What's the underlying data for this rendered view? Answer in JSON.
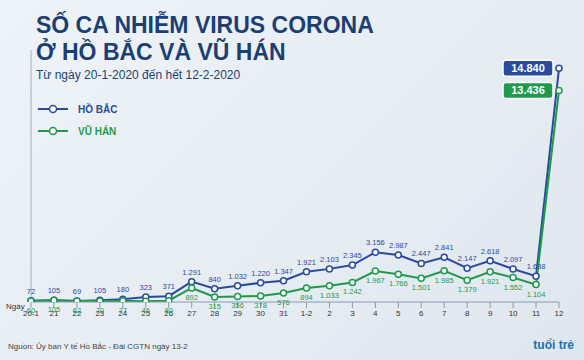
{
  "chart_data": {
    "type": "line",
    "title": "SỐ CA NHIỄM VIRUS CORONA\nỞ HỒ BẮC VÀ VŨ HÁN",
    "subtitle": "Từ ngày 20-1-2020 đến hết 12-2-2020",
    "x_label": "Ngày",
    "source": "Nguồn: Ủy ban Y tế Hồ Bắc - Đài CGTN ngày 13-2",
    "logo": "tuổi trẻ",
    "categories": [
      "20-1",
      "21",
      "22",
      "23",
      "24",
      "25",
      "26",
      "27",
      "28",
      "29",
      "30",
      "31",
      "1-2",
      "2",
      "3",
      "4",
      "5",
      "6",
      "7",
      "8",
      "9",
      "10",
      "11",
      "12"
    ],
    "series": [
      {
        "name": "HỒ BẮC",
        "color": "#2b4a9c",
        "marker": "circle",
        "values": [
          72,
          105,
          69,
          105,
          180,
          323,
          371,
          1291,
          840,
          1032,
          1220,
          1347,
          1921,
          2103,
          2345,
          3156,
          2987,
          2447,
          2841,
          2147,
          2618,
          2097,
          1638,
          14840
        ],
        "value_labels": [
          "72",
          "105",
          "69",
          "105",
          "180",
          "323",
          "371",
          "1.291",
          "840",
          "1.032",
          "1.220",
          "1.347",
          "1.921",
          "2.103",
          "2.345",
          "3.156",
          "2.987",
          "2.447",
          "2.841",
          "2.147",
          "2.618",
          "2.097",
          "1.638",
          "14.840"
        ]
      },
      {
        "name": "VŨ HÁN",
        "color": "#1f9a4c",
        "marker": "circle",
        "values": [
          60,
          105,
          62,
          70,
          77,
          46,
          80,
          892,
          315,
          356,
          378,
          576,
          894,
          1033,
          1242,
          1967,
          1766,
          1501,
          1985,
          1379,
          1921,
          1552,
          1104,
          13436
        ],
        "value_labels": [
          "60",
          "105",
          "62",
          "70",
          "77",
          "46",
          "80",
          "892",
          "315",
          "356",
          "378",
          "576",
          "894",
          "1.033",
          "1.242",
          "1.967",
          "1.766",
          "1.501",
          "1.985",
          "1.379",
          "1.921",
          "1.552",
          "1.104",
          "13.436"
        ]
      }
    ],
    "ylim": [
      0,
      16000
    ],
    "tick_labels": "x",
    "grid": false,
    "data_labels": true,
    "legend": "upper left"
  }
}
